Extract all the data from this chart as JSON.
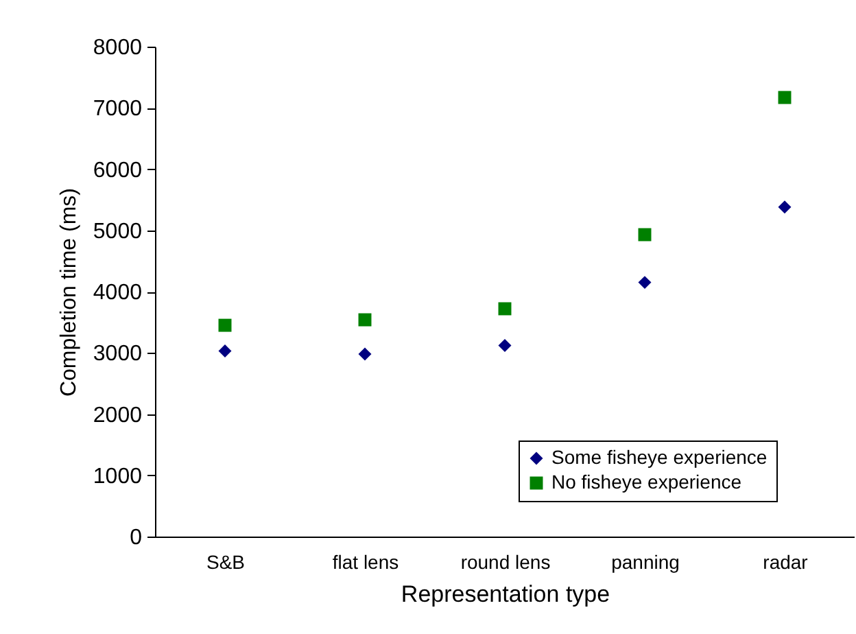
{
  "chart_data": {
    "type": "scatter",
    "xlabel": "Representation type",
    "ylabel": "Completion time (ms)",
    "categories": [
      "S&B",
      "flat lens",
      "round lens",
      "panning",
      "radar"
    ],
    "series": [
      {
        "name": "Some fisheye experience",
        "color": "#000080",
        "marker": "diamond",
        "values": [
          3030,
          2980,
          3120,
          4150,
          5380
        ]
      },
      {
        "name": "No fisheye experience",
        "color": "#008000",
        "marker": "square",
        "values": [
          3450,
          3540,
          3720,
          4930,
          7170
        ]
      }
    ],
    "ylim": [
      0,
      8000
    ],
    "yticks": [
      0,
      1000,
      2000,
      3000,
      4000,
      5000,
      6000,
      7000,
      8000
    ],
    "grid": false,
    "legend": "bottom right"
  }
}
